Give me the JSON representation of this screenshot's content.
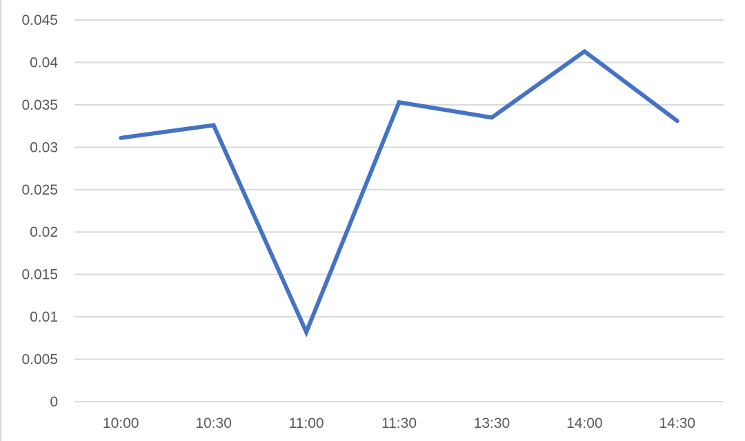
{
  "chart_data": {
    "type": "line",
    "title": "",
    "xlabel": "",
    "ylabel": "",
    "categories": [
      "10:00",
      "10:30",
      "11:00",
      "11:30",
      "13:30",
      "14:00",
      "14:30"
    ],
    "series": [
      {
        "values": [
          0.0311,
          0.0326,
          0.0082,
          0.0353,
          0.0335,
          0.0413,
          0.0331
        ],
        "color": "#4472c4"
      }
    ],
    "ylim": [
      0,
      0.045
    ],
    "yticks": [
      "0",
      "0.005",
      "0.01",
      "0.015",
      "0.02",
      "0.025",
      "0.03",
      "0.035",
      "0.04",
      "0.045"
    ],
    "grid": true,
    "legend": "none",
    "gridline_color": "#d9d9d9"
  }
}
